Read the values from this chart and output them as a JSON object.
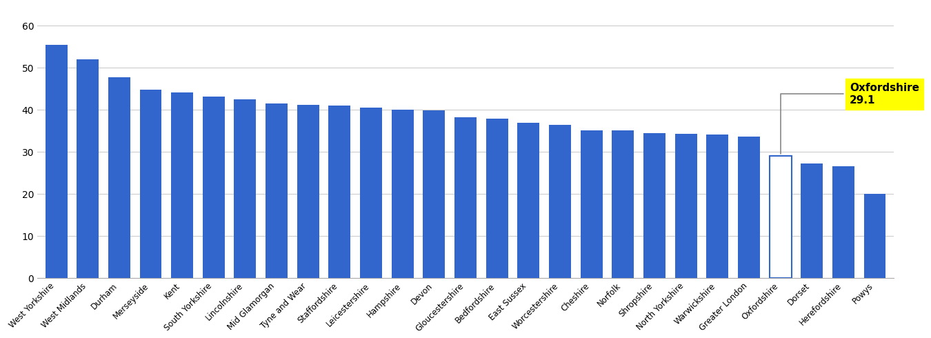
{
  "categories": [
    "West Yorkshire",
    "West Midlands",
    "Durham",
    "Merseyside",
    "Kent",
    "South Yorkshire",
    "Lincolnshire",
    "Mid Glamorgan",
    "Tyne and Wear",
    "Staffordshire",
    "Leicestershire",
    "Hampshire",
    "Devon",
    "Gloucestershire",
    "Bedfordshire",
    "East Sussex",
    "Worcestershire",
    "Cheshire",
    "Norfolk",
    "Shropshire",
    "North Yorkshire",
    "Warwickshire",
    "Greater London",
    "Oxfordshire",
    "Dorset",
    "Herefordshire",
    "Powys"
  ],
  "values": [
    55.5,
    52.0,
    47.8,
    44.9,
    44.2,
    43.1,
    42.6,
    41.5,
    41.2,
    41.1,
    40.5,
    40.1,
    39.9,
    38.3,
    38.0,
    36.9,
    36.5,
    35.2,
    35.1,
    34.5,
    34.3,
    34.1,
    33.6,
    29.1,
    27.3,
    26.7,
    20.1
  ],
  "highlight_index": 23,
  "bar_color": "#3366CC",
  "annotation_bg": "#FFFF00",
  "background_color": "#FFFFFF",
  "grid_color": "#CCCCCC",
  "ylim": [
    0,
    65
  ],
  "yticks": [
    0,
    10,
    20,
    30,
    40,
    50,
    60
  ]
}
